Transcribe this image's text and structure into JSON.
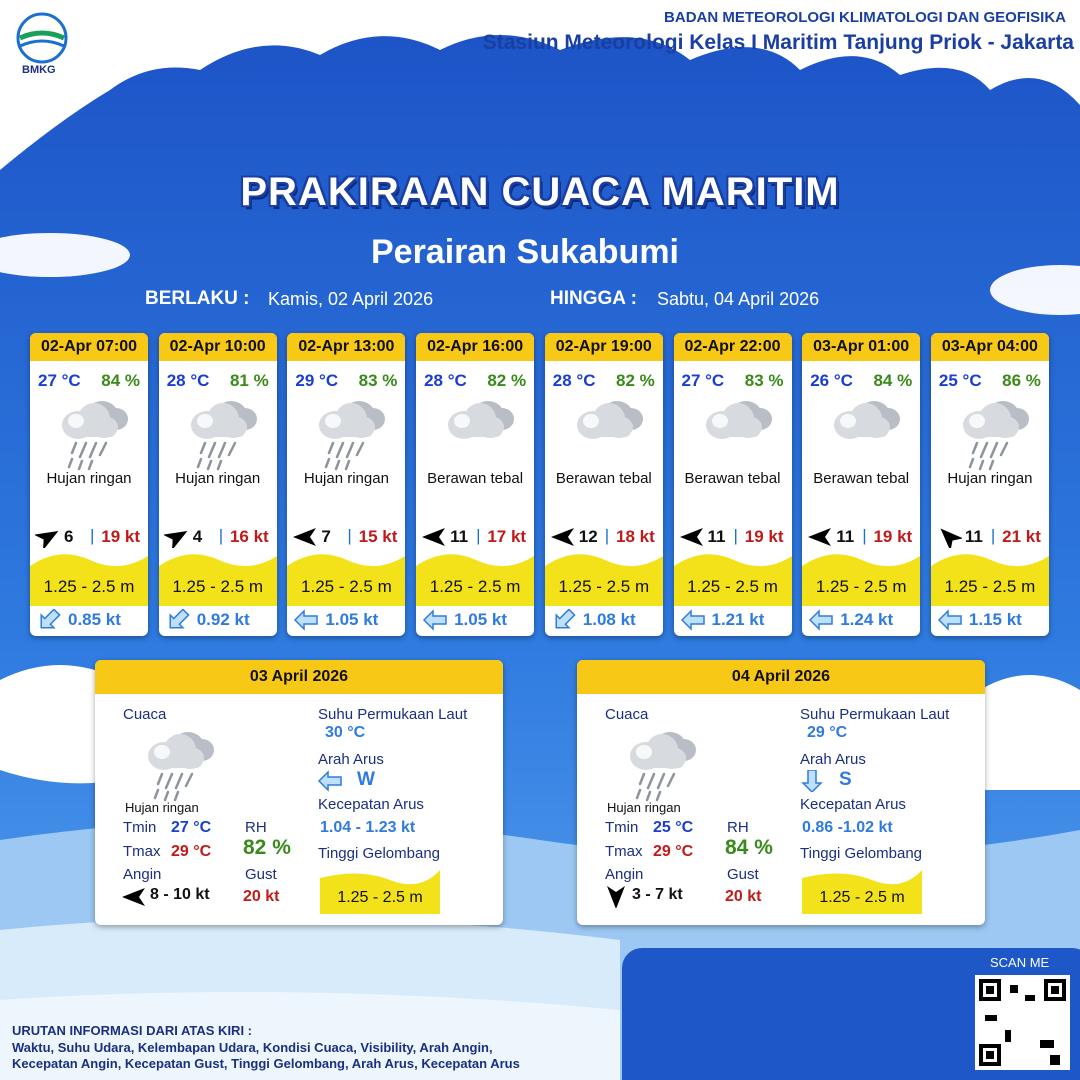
{
  "header": {
    "logo": "BMKG",
    "organization": "BADAN METEOROLOGI KLIMATOLOGI DAN GEOFISIKA",
    "station": "Stasiun Meteorologi Kelas I Maritim Tanjung Priok - Jakarta"
  },
  "title": "PRAKIRAAN CUACA MARITIM",
  "subtitle": "Perairan Sukabumi",
  "validity": {
    "from_label": "BERLAKU :",
    "from": "Kamis, 02 April 2026",
    "to_label": "HINGGA :",
    "to": "Sabtu, 04 April 2026"
  },
  "forecasts": [
    {
      "time": "02-Apr 07:00",
      "temperature": "27 °C",
      "humidity": "84 %",
      "condition": "Hujan ringan",
      "wind": "6",
      "gust": "19 kt",
      "wave": "1.25 - 2.5 m",
      "current": "0.85 kt"
    },
    {
      "time": "02-Apr 10:00",
      "temperature": "28 °C",
      "humidity": "81 %",
      "condition": "Hujan ringan",
      "wind": "4",
      "gust": "16 kt",
      "wave": "1.25 - 2.5 m",
      "current": "0.92 kt"
    },
    {
      "time": "02-Apr 13:00",
      "temperature": "29 °C",
      "humidity": "83 %",
      "condition": "Hujan ringan",
      "wind": "7",
      "gust": "15 kt",
      "wave": "1.25 - 2.5 m",
      "current": "1.05 kt"
    },
    {
      "time": "02-Apr 16:00",
      "temperature": "28 °C",
      "humidity": "82 %",
      "condition": "Berawan tebal",
      "wind": "11",
      "gust": "17 kt",
      "wave": "1.25 - 2.5 m",
      "current": "1.05 kt"
    },
    {
      "time": "02-Apr 19:00",
      "temperature": "28 °C",
      "humidity": "82 %",
      "condition": "Berawan tebal",
      "wind": "12",
      "gust": "18 kt",
      "wave": "1.25 - 2.5 m",
      "current": "1.08 kt"
    },
    {
      "time": "02-Apr 22:00",
      "temperature": "27 °C",
      "humidity": "83 %",
      "condition": "Berawan tebal",
      "wind": "11",
      "gust": "19 kt",
      "wave": "1.25 - 2.5 m",
      "current": "1.21 kt"
    },
    {
      "time": "03-Apr 01:00",
      "temperature": "26 °C",
      "humidity": "84 %",
      "condition": "Berawan tebal",
      "wind": "11",
      "gust": "19 kt",
      "wave": "1.25 - 2.5 m",
      "current": "1.24 kt"
    },
    {
      "time": "03-Apr 04:00",
      "temperature": "25 °C",
      "humidity": "86 %",
      "condition": "Hujan ringan",
      "wind": "11",
      "gust": "21 kt",
      "wave": "1.25 - 2.5 m",
      "current": "1.15 kt"
    }
  ],
  "daily_labels": {
    "weather": "Cuaca",
    "tmin": "Tmin",
    "tmax": "Tmax",
    "rh": "RH",
    "wind": "Angin",
    "gust": "Gust",
    "sst": "Suhu Permukaan Laut",
    "current_dir": "Arah Arus",
    "current_speed": "Kecepatan Arus",
    "wave": "Tinggi Gelombang"
  },
  "daily": [
    {
      "date": "03 April 2026",
      "condition": "Hujan ringan",
      "tmin": "27 °C",
      "tmax": "29 °C",
      "rh": "82 %",
      "wind": "8  - 10 kt",
      "gust": "20 kt",
      "sst": "30 °C",
      "current_dir": "W",
      "current_speed": "1.04  - 1.23 kt",
      "wave": "1.25 - 2.5 m"
    },
    {
      "date": "04 April 2026",
      "condition": "Hujan ringan",
      "tmin": "25 °C",
      "tmax": "29 °C",
      "rh": "84 %",
      "wind": "3  - 7 kt",
      "gust": "20 kt",
      "sst": "29 °C",
      "current_dir": "S",
      "current_speed": "0.86 -1.02 kt",
      "wave": "1.25 - 2.5 m"
    }
  ],
  "footer": {
    "scan": "SCAN ME",
    "legend_title": "URUTAN INFORMASI DARI ATAS KIRI :",
    "legend_lines": [
      "Waktu, Suhu Udara, Kelembapan Udara, Kondisi Cuaca, Visibility, Arah Angin,",
      "Kecepatan Angin, Kecepatan Gust, Tinggi Gelombang, Arah Arus, Kecepatan Arus"
    ]
  }
}
